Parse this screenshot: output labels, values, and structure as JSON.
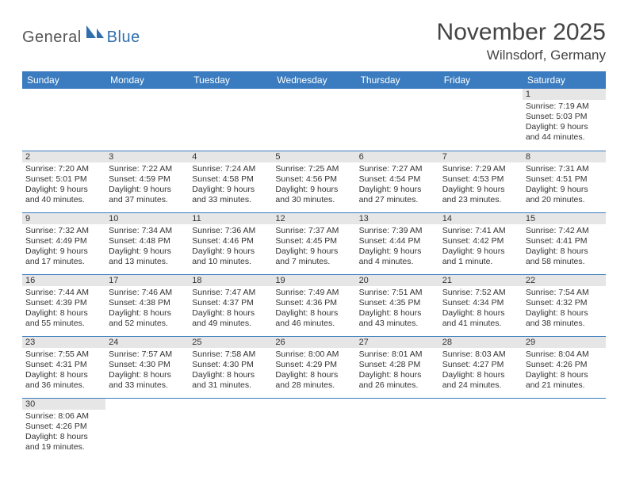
{
  "logo": {
    "text_a": "General",
    "text_b": "Blue"
  },
  "title": "November 2025",
  "location": "Wilnsdorf, Germany",
  "colors": {
    "header_bg": "#3a7cbf",
    "header_fg": "#ffffff",
    "daynum_bg": "#e6e6e6",
    "rule": "#3a7cbf",
    "logo_gray": "#555555",
    "logo_blue": "#2f6fae"
  },
  "weekdays": [
    "Sunday",
    "Monday",
    "Tuesday",
    "Wednesday",
    "Thursday",
    "Friday",
    "Saturday"
  ],
  "weeks": [
    [
      {
        "blank": true
      },
      {
        "blank": true
      },
      {
        "blank": true
      },
      {
        "blank": true
      },
      {
        "blank": true
      },
      {
        "blank": true
      },
      {
        "n": "1",
        "sr": "7:19 AM",
        "ss": "5:03 PM",
        "dl": "9 hours and 44 minutes."
      }
    ],
    [
      {
        "n": "2",
        "sr": "7:20 AM",
        "ss": "5:01 PM",
        "dl": "9 hours and 40 minutes."
      },
      {
        "n": "3",
        "sr": "7:22 AM",
        "ss": "4:59 PM",
        "dl": "9 hours and 37 minutes."
      },
      {
        "n": "4",
        "sr": "7:24 AM",
        "ss": "4:58 PM",
        "dl": "9 hours and 33 minutes."
      },
      {
        "n": "5",
        "sr": "7:25 AM",
        "ss": "4:56 PM",
        "dl": "9 hours and 30 minutes."
      },
      {
        "n": "6",
        "sr": "7:27 AM",
        "ss": "4:54 PM",
        "dl": "9 hours and 27 minutes."
      },
      {
        "n": "7",
        "sr": "7:29 AM",
        "ss": "4:53 PM",
        "dl": "9 hours and 23 minutes."
      },
      {
        "n": "8",
        "sr": "7:31 AM",
        "ss": "4:51 PM",
        "dl": "9 hours and 20 minutes."
      }
    ],
    [
      {
        "n": "9",
        "sr": "7:32 AM",
        "ss": "4:49 PM",
        "dl": "9 hours and 17 minutes."
      },
      {
        "n": "10",
        "sr": "7:34 AM",
        "ss": "4:48 PM",
        "dl": "9 hours and 13 minutes."
      },
      {
        "n": "11",
        "sr": "7:36 AM",
        "ss": "4:46 PM",
        "dl": "9 hours and 10 minutes."
      },
      {
        "n": "12",
        "sr": "7:37 AM",
        "ss": "4:45 PM",
        "dl": "9 hours and 7 minutes."
      },
      {
        "n": "13",
        "sr": "7:39 AM",
        "ss": "4:44 PM",
        "dl": "9 hours and 4 minutes."
      },
      {
        "n": "14",
        "sr": "7:41 AM",
        "ss": "4:42 PM",
        "dl": "9 hours and 1 minute."
      },
      {
        "n": "15",
        "sr": "7:42 AM",
        "ss": "4:41 PM",
        "dl": "8 hours and 58 minutes."
      }
    ],
    [
      {
        "n": "16",
        "sr": "7:44 AM",
        "ss": "4:39 PM",
        "dl": "8 hours and 55 minutes."
      },
      {
        "n": "17",
        "sr": "7:46 AM",
        "ss": "4:38 PM",
        "dl": "8 hours and 52 minutes."
      },
      {
        "n": "18",
        "sr": "7:47 AM",
        "ss": "4:37 PM",
        "dl": "8 hours and 49 minutes."
      },
      {
        "n": "19",
        "sr": "7:49 AM",
        "ss": "4:36 PM",
        "dl": "8 hours and 46 minutes."
      },
      {
        "n": "20",
        "sr": "7:51 AM",
        "ss": "4:35 PM",
        "dl": "8 hours and 43 minutes."
      },
      {
        "n": "21",
        "sr": "7:52 AM",
        "ss": "4:34 PM",
        "dl": "8 hours and 41 minutes."
      },
      {
        "n": "22",
        "sr": "7:54 AM",
        "ss": "4:32 PM",
        "dl": "8 hours and 38 minutes."
      }
    ],
    [
      {
        "n": "23",
        "sr": "7:55 AM",
        "ss": "4:31 PM",
        "dl": "8 hours and 36 minutes."
      },
      {
        "n": "24",
        "sr": "7:57 AM",
        "ss": "4:30 PM",
        "dl": "8 hours and 33 minutes."
      },
      {
        "n": "25",
        "sr": "7:58 AM",
        "ss": "4:30 PM",
        "dl": "8 hours and 31 minutes."
      },
      {
        "n": "26",
        "sr": "8:00 AM",
        "ss": "4:29 PM",
        "dl": "8 hours and 28 minutes."
      },
      {
        "n": "27",
        "sr": "8:01 AM",
        "ss": "4:28 PM",
        "dl": "8 hours and 26 minutes."
      },
      {
        "n": "28",
        "sr": "8:03 AM",
        "ss": "4:27 PM",
        "dl": "8 hours and 24 minutes."
      },
      {
        "n": "29",
        "sr": "8:04 AM",
        "ss": "4:26 PM",
        "dl": "8 hours and 21 minutes."
      }
    ],
    [
      {
        "n": "30",
        "sr": "8:06 AM",
        "ss": "4:26 PM",
        "dl": "8 hours and 19 minutes."
      },
      {
        "blank": true
      },
      {
        "blank": true
      },
      {
        "blank": true
      },
      {
        "blank": true
      },
      {
        "blank": true
      },
      {
        "blank": true
      }
    ]
  ],
  "labels": {
    "sunrise": "Sunrise: ",
    "sunset": "Sunset: ",
    "daylight": "Daylight: "
  }
}
